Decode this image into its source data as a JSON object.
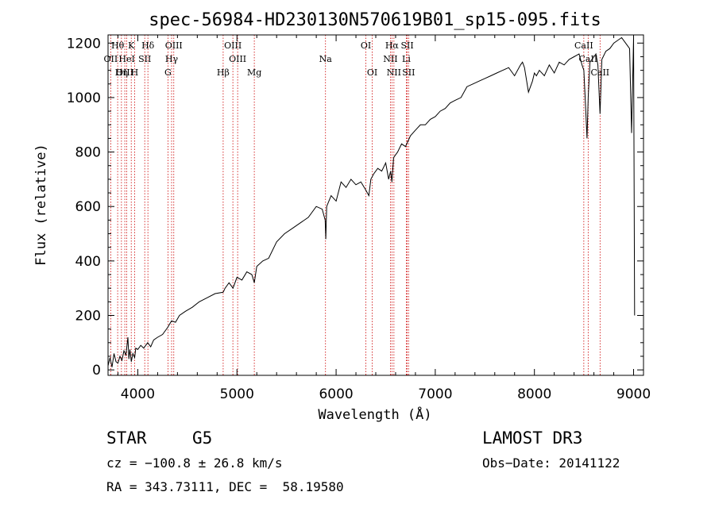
{
  "chart_data": {
    "type": "line",
    "title": "spec-56984-HD230130N570619B01_sp15-095.fits",
    "xlabel": "Wavelength (Å)",
    "ylabel": "Flux (relative)",
    "xlim": [
      3700,
      9100
    ],
    "ylim": [
      -20,
      1230
    ],
    "xticks": [
      4000,
      5000,
      6000,
      7000,
      8000,
      9000
    ],
    "yticks": [
      0,
      200,
      400,
      600,
      800,
      1000,
      1200
    ],
    "grid": false,
    "series": [
      {
        "name": "spectrum",
        "x": [
          3700,
          3720,
          3740,
          3760,
          3780,
          3800,
          3820,
          3840,
          3860,
          3880,
          3900,
          3910,
          3920,
          3935,
          3950,
          3968,
          3980,
          4000,
          4030,
          4060,
          4100,
          4130,
          4160,
          4200,
          4250,
          4300,
          4340,
          4380,
          4420,
          4480,
          4550,
          4620,
          4700,
          4780,
          4861,
          4880,
          4920,
          4960,
          5000,
          5050,
          5100,
          5150,
          5175,
          5200,
          5260,
          5320,
          5400,
          5480,
          5560,
          5640,
          5720,
          5800,
          5860,
          5890,
          5896,
          5905,
          5950,
          6000,
          6050,
          6100,
          6150,
          6200,
          6250,
          6300,
          6330,
          6350,
          6380,
          6420,
          6460,
          6500,
          6530,
          6550,
          6563,
          6580,
          6620,
          6660,
          6700,
          6750,
          6800,
          6850,
          6900,
          6950,
          7000,
          7050,
          7100,
          7150,
          7200,
          7260,
          7320,
          7380,
          7440,
          7500,
          7560,
          7620,
          7680,
          7740,
          7800,
          7860,
          7880,
          7900,
          7940,
          7980,
          8000,
          8020,
          8050,
          8100,
          8150,
          8200,
          8250,
          8300,
          8350,
          8400,
          8450,
          8480,
          8498,
          8510,
          8530,
          8542,
          8560,
          8600,
          8620,
          8640,
          8662,
          8680,
          8720,
          8760,
          8800,
          8840,
          8880,
          8920,
          8960,
          8980,
          9000,
          9010
        ],
        "values": [
          15,
          45,
          10,
          60,
          30,
          25,
          50,
          35,
          70,
          55,
          120,
          40,
          75,
          30,
          60,
          45,
          80,
          75,
          90,
          80,
          100,
          85,
          110,
          120,
          130,
          155,
          180,
          175,
          200,
          215,
          230,
          250,
          265,
          280,
          285,
          300,
          320,
          300,
          340,
          330,
          360,
          350,
          320,
          380,
          400,
          410,
          470,
          500,
          520,
          540,
          560,
          600,
          590,
          550,
          480,
          600,
          640,
          620,
          690,
          670,
          700,
          680,
          690,
          660,
          640,
          700,
          720,
          740,
          730,
          760,
          700,
          730,
          690,
          780,
          800,
          830,
          820,
          860,
          880,
          900,
          900,
          920,
          930,
          950,
          960,
          980,
          990,
          1000,
          1040,
          1050,
          1060,
          1070,
          1080,
          1090,
          1100,
          1110,
          1080,
          1120,
          1130,
          1110,
          1020,
          1060,
          1090,
          1080,
          1100,
          1080,
          1120,
          1090,
          1130,
          1120,
          1140,
          1150,
          1160,
          1120,
          1100,
          1010,
          850,
          1000,
          1130,
          1150,
          1160,
          1120,
          940,
          1140,
          1170,
          1180,
          1200,
          1210,
          1220,
          1200,
          1180,
          870,
          1220,
          200
        ]
      }
    ],
    "lines": [
      {
        "name": "Hθ",
        "wavelength": 3797,
        "row": 0
      },
      {
        "name": "K",
        "wavelength": 3934,
        "row": 0
      },
      {
        "name": "Hδ",
        "wavelength": 4102,
        "row": 0
      },
      {
        "name": "OIII",
        "wavelength": 4363,
        "row": 0
      },
      {
        "name": "OIII",
        "wavelength": 4959,
        "row": 0
      },
      {
        "name": "OI",
        "wavelength": 6300,
        "row": 0
      },
      {
        "name": "Hα",
        "wavelength": 6563,
        "row": 0
      },
      {
        "name": "SII",
        "wavelength": 6717,
        "row": 0
      },
      {
        "name": "CaII",
        "wavelength": 8498,
        "row": 0
      },
      {
        "name": "OII",
        "wavelength": 3727,
        "row": 1
      },
      {
        "name": "HeI",
        "wavelength": 3889,
        "row": 1
      },
      {
        "name": "SII",
        "wavelength": 4070,
        "row": 1
      },
      {
        "name": "Hγ",
        "wavelength": 4341,
        "row": 1
      },
      {
        "name": "OIII",
        "wavelength": 5007,
        "row": 1
      },
      {
        "name": "NII",
        "wavelength": 6548,
        "row": 1
      },
      {
        "name": "Li",
        "wavelength": 6708,
        "row": 1
      },
      {
        "name": "CaII",
        "wavelength": 8542,
        "row": 1
      },
      {
        "name": "OIII",
        "wavelength": 3869,
        "row": 2
      },
      {
        "name": "Hη",
        "wavelength": 3835,
        "row": 2
      },
      {
        "name": "H",
        "wavelength": 3968,
        "row": 2
      },
      {
        "name": "G",
        "wavelength": 4304,
        "row": 2
      },
      {
        "name": "Hβ",
        "wavelength": 4861,
        "row": 2
      },
      {
        "name": "Mg",
        "wavelength": 5175,
        "row": 2
      },
      {
        "name": "Na",
        "wavelength": 5893,
        "row": 1
      },
      {
        "name": "OI",
        "wavelength": 6364,
        "row": 2
      },
      {
        "name": "NII",
        "wavelength": 6583,
        "row": 2
      },
      {
        "name": "SII",
        "wavelength": 6731,
        "row": 2
      },
      {
        "name": "CaII",
        "wavelength": 8662,
        "row": 2
      }
    ]
  },
  "info": {
    "class": "STAR",
    "subclass": "G5",
    "survey": "LAMOST DR3",
    "cz": "cz = −100.8 ± 26.8 km/s",
    "obs_date": "Obs−Date: 20141122",
    "radec": "RA = 343.73111, DEC =  58.19580"
  }
}
